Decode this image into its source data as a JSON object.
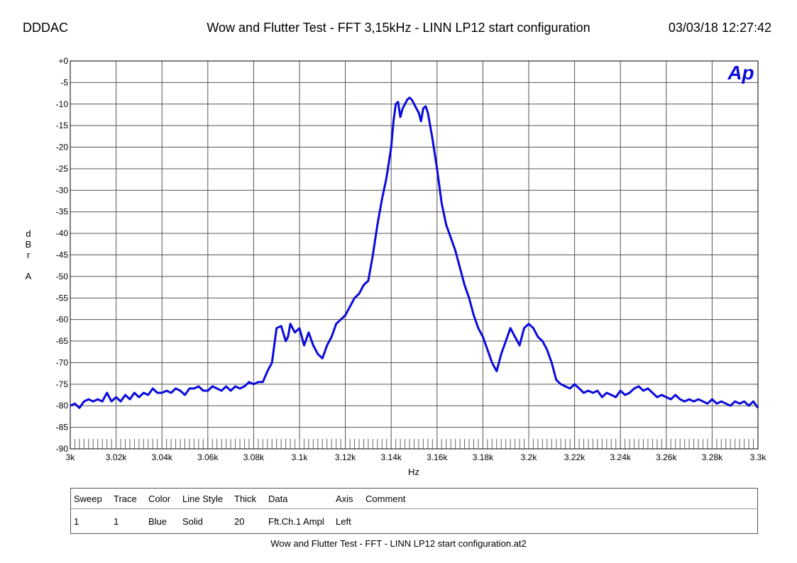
{
  "header": {
    "left": "DDDAC",
    "title": "Wow and Flutter Test - FFT 3,15kHz - LINN LP12 start configuration",
    "datetime": "03/03/18 12:27:42"
  },
  "logo_text": "Ap",
  "colors": {
    "trace": "#0a0adc",
    "grid": "#555555",
    "axis": "#000000"
  },
  "chart_data": {
    "type": "line",
    "xlabel": "Hz",
    "ylabel_letters": [
      "d",
      "B",
      "r",
      "",
      "A"
    ],
    "xlim": [
      3000,
      3300
    ],
    "ylim": [
      -90,
      0
    ],
    "x_ticks": [
      3000,
      3020,
      3040,
      3060,
      3080,
      3100,
      3120,
      3140,
      3160,
      3180,
      3200,
      3220,
      3240,
      3260,
      3280,
      3300
    ],
    "x_tick_labels": [
      "3k",
      "3.02k",
      "3.04k",
      "3.06k",
      "3.08k",
      "3.1k",
      "3.12k",
      "3.14k",
      "3.16k",
      "3.18k",
      "3.2k",
      "3.22k",
      "3.24k",
      "3.26k",
      "3.28k",
      "3.3k"
    ],
    "y_ticks": [
      0,
      -5,
      -10,
      -15,
      -20,
      -25,
      -30,
      -35,
      -40,
      -45,
      -50,
      -55,
      -60,
      -65,
      -70,
      -75,
      -80,
      -85,
      -90
    ],
    "y_tick_labels": [
      "+0",
      "-5",
      "-10",
      "-15",
      "-20",
      "-25",
      "-30",
      "-35",
      "-40",
      "-45",
      "-50",
      "-55",
      "-60",
      "-65",
      "-70",
      "-75",
      "-80",
      "-85",
      "-90"
    ],
    "grid": true,
    "series": [
      {
        "x": [
          3000,
          3002,
          3004,
          3006,
          3008,
          3010,
          3012,
          3014,
          3016,
          3018,
          3020,
          3022,
          3024,
          3026,
          3028,
          3030,
          3032,
          3034,
          3036,
          3038,
          3040,
          3042,
          3044,
          3046,
          3048,
          3050,
          3052,
          3054,
          3056,
          3058,
          3060,
          3062,
          3064,
          3066,
          3068,
          3070,
          3072,
          3074,
          3076,
          3078,
          3080,
          3082,
          3084,
          3086,
          3088,
          3090,
          3092,
          3094,
          3095,
          3096,
          3098,
          3100,
          3102,
          3104,
          3106,
          3108,
          3110,
          3112,
          3114,
          3116,
          3118,
          3120,
          3122,
          3124,
          3126,
          3128,
          3130,
          3132,
          3134,
          3136,
          3138,
          3140,
          3141,
          3142,
          3143,
          3144,
          3145,
          3146,
          3147,
          3148,
          3149,
          3150,
          3151,
          3152,
          3153,
          3154,
          3155,
          3156,
          3157,
          3158,
          3160,
          3162,
          3164,
          3166,
          3168,
          3170,
          3172,
          3174,
          3176,
          3178,
          3180,
          3182,
          3184,
          3186,
          3188,
          3190,
          3192,
          3194,
          3196,
          3198,
          3200,
          3202,
          3204,
          3206,
          3208,
          3210,
          3212,
          3214,
          3216,
          3218,
          3220,
          3222,
          3224,
          3226,
          3228,
          3230,
          3232,
          3234,
          3236,
          3238,
          3240,
          3242,
          3244,
          3246,
          3248,
          3250,
          3252,
          3254,
          3256,
          3258,
          3260,
          3262,
          3264,
          3266,
          3268,
          3270,
          3272,
          3274,
          3276,
          3278,
          3280,
          3282,
          3284,
          3286,
          3288,
          3290,
          3292,
          3294,
          3296,
          3298,
          3300
        ],
        "y": [
          -80,
          -79.5,
          -80.5,
          -79,
          -78.5,
          -79,
          -78.5,
          -79,
          -77,
          -79,
          -78,
          -79,
          -77.5,
          -78.5,
          -77,
          -78,
          -77,
          -77.5,
          -76,
          -77,
          -77,
          -76.5,
          -77,
          -76,
          -76.5,
          -77.5,
          -76,
          -76,
          -75.5,
          -76.5,
          -76.5,
          -75.5,
          -76,
          -76.5,
          -75.5,
          -76.5,
          -75.5,
          -76,
          -75.5,
          -74.5,
          -75,
          -74.5,
          -74.5,
          -72,
          -70,
          -62,
          -61.5,
          -65,
          -64,
          -61,
          -63,
          -62,
          -66,
          -63,
          -66,
          -68,
          -69,
          -66,
          -64,
          -61,
          -60,
          -59,
          -57,
          -55,
          -54,
          -52,
          -51,
          -45,
          -38,
          -32,
          -27,
          -20,
          -14,
          -10,
          -9.5,
          -13,
          -11,
          -10,
          -9,
          -8.5,
          -9,
          -10,
          -11,
          -12,
          -14,
          -11,
          -10.5,
          -12,
          -15,
          -18,
          -25,
          -33,
          -38,
          -41,
          -44,
          -48,
          -52,
          -55,
          -59,
          -62,
          -64,
          -67,
          -70,
          -72,
          -68,
          -65,
          -62,
          -64,
          -66,
          -62,
          -61,
          -62,
          -64,
          -65,
          -67,
          -70,
          -74,
          -75,
          -75.5,
          -76,
          -75,
          -76,
          -77,
          -76.5,
          -77,
          -76.5,
          -78,
          -77,
          -77.5,
          -78,
          -76.5,
          -77.5,
          -77,
          -76,
          -75.5,
          -76.5,
          -76,
          -77,
          -78,
          -77.5,
          -78,
          -78.5,
          -77.5,
          -78.5,
          -79,
          -78.5,
          -79,
          -78.5,
          -79,
          -79.5,
          -78.5,
          -79.5,
          -79,
          -79.5,
          -80,
          -79,
          -79.5,
          -79,
          -80,
          -79,
          -80.5
        ]
      }
    ]
  },
  "legend_table": {
    "headers": [
      "Sweep",
      "Trace",
      "Color",
      "Line Style",
      "Thick",
      "Data",
      "Axis",
      "Comment"
    ],
    "rows": [
      [
        "1",
        "1",
        "Blue",
        "Solid",
        "20",
        "Fft.Ch.1 Ampl",
        "Left",
        ""
      ]
    ]
  },
  "footer": "Wow and Flutter Test - FFT - LINN LP12 start configuration.at2"
}
